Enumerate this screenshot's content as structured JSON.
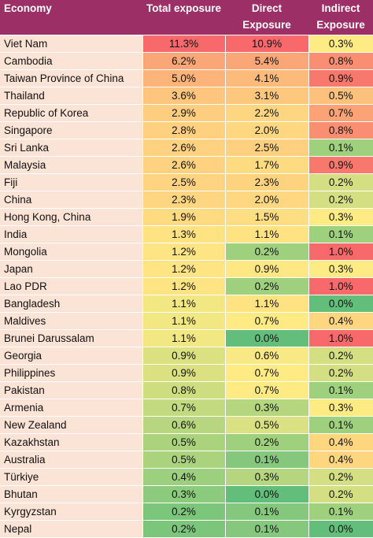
{
  "header": {
    "economy": "Economy",
    "total": "Total exposure",
    "direct": "Direct Exposure",
    "indirect": "Indirect Exposure"
  },
  "rows": [
    {
      "economy": "Viet Nam",
      "total": "11.3%",
      "direct": "10.9%",
      "indirect": "0.3%",
      "total_color": "#f8696b",
      "direct_color": "#f8696b",
      "indirect_color": "#ffeb84"
    },
    {
      "economy": "Cambodia",
      "total": "6.2%",
      "direct": "5.4%",
      "indirect": "0.8%",
      "total_color": "#fba677",
      "direct_color": "#fba677",
      "indirect_color": "#fa8e72"
    },
    {
      "economy": "Taiwan Province of China",
      "total": "5.0%",
      "direct": "4.1%",
      "indirect": "0.9%",
      "total_color": "#fcb47a",
      "direct_color": "#fcbb7b",
      "indirect_color": "#f8786e"
    },
    {
      "economy": "Thailand",
      "total": "3.6%",
      "direct": "3.1%",
      "indirect": "0.5%",
      "total_color": "#fdc57d",
      "direct_color": "#fdc87e",
      "indirect_color": "#fcc17c"
    },
    {
      "economy": "Republic of Korea",
      "total": "2.9%",
      "direct": "2.2%",
      "indirect": "0.7%",
      "total_color": "#fdce7f",
      "direct_color": "#fed580",
      "indirect_color": "#fba276"
    },
    {
      "economy": "Singapore",
      "total": "2.8%",
      "direct": "2.0%",
      "indirect": "0.8%",
      "total_color": "#fed080",
      "direct_color": "#fed780",
      "indirect_color": "#fa8e72"
    },
    {
      "economy": "Sri Lanka",
      "total": "2.6%",
      "direct": "2.5%",
      "indirect": "0.1%",
      "total_color": "#fed280",
      "direct_color": "#fed07f",
      "indirect_color": "#9fd07e"
    },
    {
      "economy": "Malaysia",
      "total": "2.6%",
      "direct": "1.7%",
      "indirect": "0.9%",
      "total_color": "#fed280",
      "direct_color": "#fedb81",
      "indirect_color": "#f8786e"
    },
    {
      "economy": "Fiji",
      "total": "2.5%",
      "direct": "2.3%",
      "indirect": "0.2%",
      "total_color": "#fed381",
      "direct_color": "#fed380",
      "indirect_color": "#d3df82"
    },
    {
      "economy": "China",
      "total": "2.3%",
      "direct": "2.0%",
      "indirect": "0.2%",
      "total_color": "#fed681",
      "direct_color": "#fed780",
      "indirect_color": "#d3df82"
    },
    {
      "economy": "Hong Kong, China",
      "total": "1.9%",
      "direct": "1.5%",
      "indirect": "0.3%",
      "total_color": "#feda81",
      "direct_color": "#fede82",
      "indirect_color": "#ffeb84"
    },
    {
      "economy": "India",
      "total": "1.3%",
      "direct": "1.1%",
      "indirect": "0.1%",
      "total_color": "#ffe383",
      "direct_color": "#ffe383",
      "indirect_color": "#9fd07e"
    },
    {
      "economy": "Mongolia",
      "total": "1.2%",
      "direct": "0.2%",
      "indirect": "1.0%",
      "total_color": "#ffe483",
      "direct_color": "#9fd07e",
      "indirect_color": "#f8696b"
    },
    {
      "economy": "Japan",
      "total": "1.2%",
      "direct": "0.9%",
      "indirect": "0.3%",
      "total_color": "#ffe483",
      "direct_color": "#ffe884",
      "indirect_color": "#ffeb84"
    },
    {
      "economy": "Lao PDR",
      "total": "1.2%",
      "direct": "0.2%",
      "indirect": "1.0%",
      "total_color": "#ffe483",
      "direct_color": "#9fd07e",
      "indirect_color": "#f8696b"
    },
    {
      "economy": "Bangladesh",
      "total": "1.1%",
      "direct": "1.1%",
      "indirect": "0.0%",
      "total_color": "#f1e783",
      "direct_color": "#ffe383",
      "indirect_color": "#63be7b"
    },
    {
      "economy": "Maldives",
      "total": "1.1%",
      "direct": "0.7%",
      "indirect": "0.4%",
      "total_color": "#f1e783",
      "direct_color": "#ffea84",
      "indirect_color": "#fed680"
    },
    {
      "economy": "Brunei Darussalam",
      "total": "1.1%",
      "direct": "0.0%",
      "indirect": "1.0%",
      "total_color": "#f1e783",
      "direct_color": "#63be7b",
      "indirect_color": "#f8696b"
    },
    {
      "economy": "Georgia",
      "total": "0.9%",
      "direct": "0.6%",
      "indirect": "0.2%",
      "total_color": "#dbe181",
      "direct_color": "#f8e984",
      "indirect_color": "#d3df82"
    },
    {
      "economy": "Philippines",
      "total": "0.9%",
      "direct": "0.7%",
      "indirect": "0.2%",
      "total_color": "#dbe181",
      "direct_color": "#ffea84",
      "indirect_color": "#d3df82"
    },
    {
      "economy": "Pakistan",
      "total": "0.8%",
      "direct": "0.7%",
      "indirect": "0.1%",
      "total_color": "#cfdd81",
      "direct_color": "#ffea84",
      "indirect_color": "#9fd07e"
    },
    {
      "economy": "Armenia",
      "total": "0.7%",
      "direct": "0.3%",
      "indirect": "0.3%",
      "total_color": "#c3da80",
      "direct_color": "#b5d67f",
      "indirect_color": "#ffeb84"
    },
    {
      "economy": "New Zealand",
      "total": "0.6%",
      "direct": "0.5%",
      "indirect": "0.1%",
      "total_color": "#b7d67f",
      "direct_color": "#d9e182",
      "indirect_color": "#9fd07e"
    },
    {
      "economy": "Kazakhstan",
      "total": "0.5%",
      "direct": "0.2%",
      "indirect": "0.4%",
      "total_color": "#abd37e",
      "direct_color": "#9fd07e",
      "indirect_color": "#fed680"
    },
    {
      "economy": "Australia",
      "total": "0.5%",
      "direct": "0.1%",
      "indirect": "0.4%",
      "total_color": "#abd37e",
      "direct_color": "#85c87d",
      "indirect_color": "#fed680"
    },
    {
      "economy": "Türkiye",
      "total": "0.4%",
      "direct": "0.3%",
      "indirect": "0.2%",
      "total_color": "#9ccf7e",
      "direct_color": "#b5d67f",
      "indirect_color": "#d3df82"
    },
    {
      "economy": "Bhutan",
      "total": "0.3%",
      "direct": "0.0%",
      "indirect": "0.2%",
      "total_color": "#8ccb7d",
      "direct_color": "#63be7b",
      "indirect_color": "#d3df82"
    },
    {
      "economy": "Kyrgyzstan",
      "total": "0.2%",
      "direct": "0.1%",
      "indirect": "0.1%",
      "total_color": "#7cc67c",
      "direct_color": "#85c87d",
      "indirect_color": "#9fd07e"
    },
    {
      "economy": "Nepal",
      "total": "0.2%",
      "direct": "0.1%",
      "indirect": "0.0%",
      "total_color": "#7cc67c",
      "direct_color": "#85c87d",
      "indirect_color": "#63be7b"
    }
  ],
  "colors": {
    "header_bg": "#9b2f66",
    "header_text": "#ffffff",
    "name_cell_bg": "#fbe3d6"
  }
}
